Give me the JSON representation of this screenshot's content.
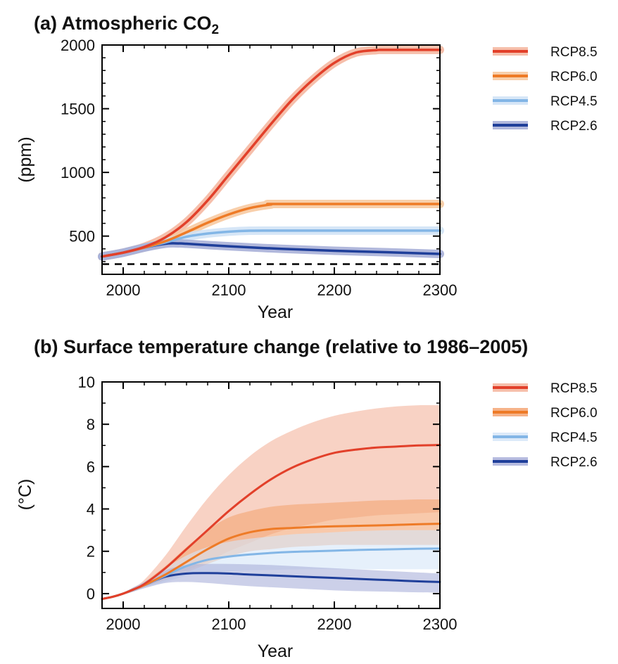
{
  "chart_data": [
    {
      "type": "line",
      "panel": "a",
      "title": "(a)  Atmospheric CO",
      "title_subscript": "2",
      "xlabel": "Year",
      "ylabel": "(ppm)",
      "xlim": [
        1980,
        2300
      ],
      "ylim": [
        200,
        2000
      ],
      "xticks": [
        2000,
        2100,
        2200,
        2300
      ],
      "yticks": [
        500,
        1000,
        1500,
        2000
      ],
      "reference_line": {
        "y": 280,
        "style": "dashed"
      },
      "legend_position": "right",
      "series": [
        {
          "name": "RCP8.5",
          "color": "#e2402a",
          "band_color": "#f4b49c",
          "x": [
            1980,
            2000,
            2020,
            2040,
            2060,
            2080,
            2100,
            2120,
            2140,
            2160,
            2180,
            2200,
            2220,
            2240,
            2250,
            2300
          ],
          "y": [
            340,
            370,
            415,
            490,
            610,
            780,
            980,
            1180,
            1380,
            1570,
            1730,
            1860,
            1940,
            1960,
            1962,
            1962
          ]
        },
        {
          "name": "RCP6.0",
          "color": "#ee7b27",
          "band_color": "#f7c79c",
          "x": [
            1980,
            2000,
            2020,
            2040,
            2060,
            2080,
            2100,
            2120,
            2140,
            2150,
            2300
          ],
          "y": [
            340,
            370,
            410,
            460,
            530,
            605,
            670,
            720,
            748,
            752,
            752
          ]
        },
        {
          "name": "RCP4.5",
          "color": "#83b6e6",
          "band_color": "#cfe2f6",
          "x": [
            1980,
            2000,
            2020,
            2040,
            2060,
            2080,
            2100,
            2120,
            2150,
            2300
          ],
          "y": [
            340,
            370,
            410,
            450,
            495,
            520,
            535,
            542,
            543,
            543
          ]
        },
        {
          "name": "RCP2.6",
          "color": "#1f3f9a",
          "band_color": "#a3abd6",
          "x": [
            1980,
            2000,
            2020,
            2040,
            2050,
            2060,
            2080,
            2100,
            2150,
            2200,
            2250,
            2300
          ],
          "y": [
            340,
            370,
            410,
            440,
            443,
            440,
            430,
            420,
            400,
            385,
            373,
            360
          ]
        }
      ]
    },
    {
      "type": "line",
      "panel": "b",
      "title": "(b)  Surface temperature change   (relative to 1986–2005)",
      "xlabel": "Year",
      "ylabel": "(°C)",
      "xlim": [
        1980,
        2300
      ],
      "ylim": [
        -0.7,
        10
      ],
      "xticks": [
        2000,
        2100,
        2200,
        2300
      ],
      "yticks": [
        0,
        2,
        4,
        6,
        8,
        10
      ],
      "legend_position": "right",
      "series": [
        {
          "name": "RCP8.5",
          "color": "#e2402a",
          "band_color": "#f4b49c",
          "x": [
            1980,
            1990,
            2000,
            2010,
            2020,
            2040,
            2060,
            2080,
            2100,
            2120,
            2140,
            2160,
            2180,
            2200,
            2220,
            2240,
            2260,
            2280,
            2300
          ],
          "y": [
            -0.25,
            -0.15,
            0.0,
            0.2,
            0.45,
            1.2,
            2.1,
            3.0,
            3.9,
            4.7,
            5.4,
            5.95,
            6.35,
            6.65,
            6.8,
            6.9,
            6.95,
            7.0,
            7.02
          ],
          "lower": [
            -0.3,
            -0.2,
            -0.05,
            0.1,
            0.3,
            0.7,
            1.1,
            1.5,
            2.0,
            2.4,
            2.8,
            3.1,
            3.3,
            3.5,
            3.6,
            3.7,
            3.75,
            3.8,
            3.85
          ],
          "upper": [
            -0.2,
            -0.1,
            0.05,
            0.3,
            0.65,
            1.8,
            3.2,
            4.5,
            5.6,
            6.5,
            7.2,
            7.7,
            8.1,
            8.4,
            8.6,
            8.75,
            8.85,
            8.9,
            8.9
          ]
        },
        {
          "name": "RCP6.0",
          "color": "#ee7b27",
          "band_color": "#f4a573",
          "x": [
            1980,
            1990,
            2000,
            2010,
            2020,
            2040,
            2060,
            2080,
            2100,
            2120,
            2140,
            2160,
            2180,
            2200,
            2220,
            2240,
            2260,
            2280,
            2300
          ],
          "y": [
            -0.25,
            -0.15,
            0.0,
            0.2,
            0.4,
            0.9,
            1.5,
            2.1,
            2.6,
            2.9,
            3.05,
            3.1,
            3.15,
            3.18,
            3.2,
            3.22,
            3.25,
            3.28,
            3.3
          ],
          "lower": [
            -0.3,
            -0.2,
            -0.05,
            0.1,
            0.3,
            0.65,
            1.0,
            1.4,
            1.75,
            2.0,
            2.1,
            2.2,
            2.25,
            2.3,
            2.3,
            2.3,
            2.3,
            2.3,
            2.3
          ],
          "upper": [
            -0.2,
            -0.1,
            0.05,
            0.3,
            0.55,
            1.3,
            2.2,
            3.0,
            3.6,
            3.9,
            4.1,
            4.2,
            4.25,
            4.3,
            4.35,
            4.4,
            4.42,
            4.45,
            4.45
          ]
        },
        {
          "name": "RCP4.5",
          "color": "#83b6e6",
          "band_color": "#d6e6f8",
          "x": [
            1980,
            1990,
            2000,
            2010,
            2020,
            2040,
            2060,
            2080,
            2100,
            2120,
            2140,
            2160,
            2180,
            2200,
            2220,
            2240,
            2260,
            2280,
            2300
          ],
          "y": [
            -0.25,
            -0.15,
            0.0,
            0.2,
            0.4,
            0.85,
            1.3,
            1.6,
            1.75,
            1.85,
            1.92,
            1.97,
            2.0,
            2.03,
            2.06,
            2.08,
            2.1,
            2.12,
            2.13
          ],
          "lower": [
            -0.3,
            -0.2,
            -0.05,
            0.1,
            0.3,
            0.55,
            0.85,
            1.0,
            1.05,
            1.1,
            1.12,
            1.14,
            1.15,
            1.15,
            1.15,
            1.15,
            1.15,
            1.15,
            1.15
          ],
          "upper": [
            -0.2,
            -0.1,
            0.05,
            0.3,
            0.55,
            1.2,
            1.8,
            2.2,
            2.45,
            2.6,
            2.7,
            2.8,
            2.85,
            2.9,
            2.95,
            2.98,
            3.0,
            3.0,
            3.0
          ]
        },
        {
          "name": "RCP2.6",
          "color": "#1f3f9a",
          "band_color": "#aab0da",
          "x": [
            1980,
            1990,
            2000,
            2010,
            2020,
            2040,
            2060,
            2080,
            2100,
            2120,
            2140,
            2160,
            2180,
            2200,
            2220,
            2240,
            2260,
            2280,
            2300
          ],
          "y": [
            -0.25,
            -0.15,
            0.0,
            0.2,
            0.4,
            0.8,
            0.95,
            0.97,
            0.95,
            0.9,
            0.86,
            0.82,
            0.78,
            0.74,
            0.7,
            0.66,
            0.62,
            0.58,
            0.55
          ],
          "lower": [
            -0.3,
            -0.2,
            -0.05,
            0.1,
            0.25,
            0.5,
            0.55,
            0.5,
            0.42,
            0.35,
            0.3,
            0.25,
            0.2,
            0.15,
            0.12,
            0.1,
            0.08,
            0.06,
            0.05
          ],
          "upper": [
            -0.2,
            -0.1,
            0.05,
            0.3,
            0.55,
            1.1,
            1.35,
            1.4,
            1.4,
            1.38,
            1.35,
            1.3,
            1.25,
            1.2,
            1.15,
            1.1,
            1.05,
            1.0,
            0.95
          ]
        }
      ]
    }
  ]
}
